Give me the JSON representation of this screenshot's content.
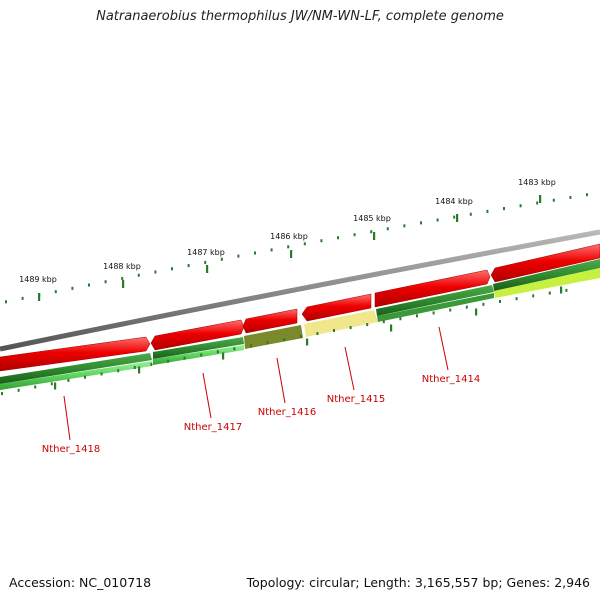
{
  "title": "Natranaerobius thermophilus JW/NM-WN-LF, complete genome",
  "footer": {
    "accession": "Accession: NC_010718",
    "stats": "Topology: circular; Length: 3,165,557 bp; Genes: 2,946"
  },
  "ruler": [
    {
      "label": "1483 kbp",
      "kbp": 1483
    },
    {
      "label": "1484 kbp",
      "kbp": 1484
    },
    {
      "label": "1485 kbp",
      "kbp": 1485
    },
    {
      "label": "1486 kbp",
      "kbp": 1486
    },
    {
      "label": "1487 kbp",
      "kbp": 1487
    },
    {
      "label": "1488 kbp",
      "kbp": 1488
    },
    {
      "label": "1489 kbp",
      "kbp": 1489
    }
  ],
  "genes": [
    {
      "label": "Nther_1414"
    },
    {
      "label": "Nther_1415"
    },
    {
      "label": "Nther_1416"
    },
    {
      "label": "Nther_1417"
    },
    {
      "label": "Nther_1418"
    }
  ],
  "colors": {
    "backbone": "#8a8a8a",
    "cds": "#e60000",
    "gene_dark": "#2e8b2e",
    "gene_light": "#5fd35f",
    "gene_olive": "#7a8a2a",
    "gene_pale": "#f0e68c",
    "gene_yellowgreen": "#c8f040",
    "tick": "#2a7a2a",
    "label": "#cc0000"
  }
}
